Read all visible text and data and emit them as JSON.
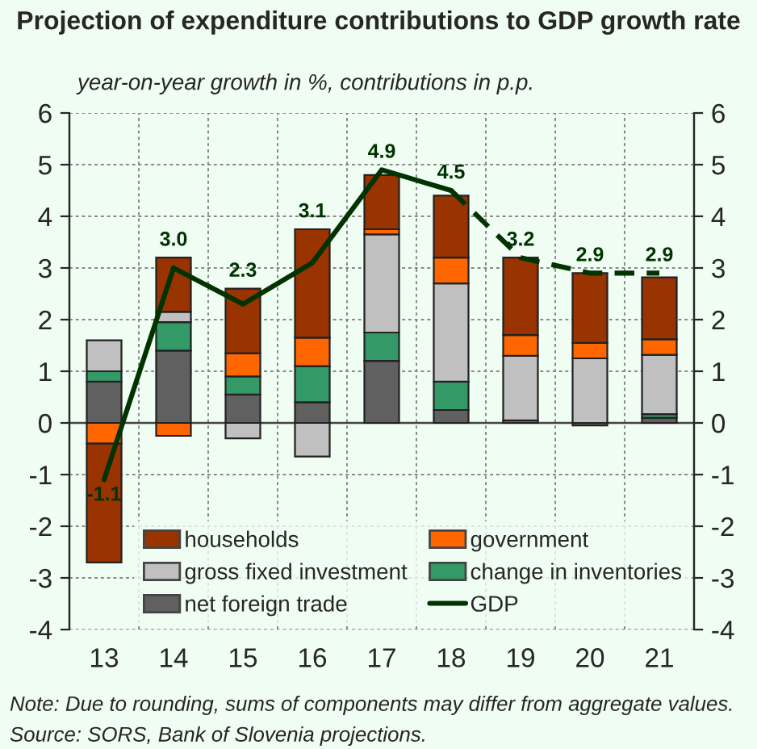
{
  "chart_data": {
    "type": "bar",
    "stacked": true,
    "title": "Projection of expenditure contributions to GDP growth rate",
    "subtitle": "year-on-year growth in %, contributions in p.p.",
    "categories": [
      "13",
      "14",
      "15",
      "16",
      "17",
      "18",
      "19",
      "20",
      "21"
    ],
    "series": [
      {
        "name": "net foreign trade",
        "color": "#606060",
        "values": [
          0.8,
          1.4,
          0.55,
          0.4,
          1.2,
          0.25,
          0.0,
          -0.05,
          0.1
        ]
      },
      {
        "name": "change in inventories",
        "color": "#339966",
        "values": [
          0.2,
          0.55,
          0.35,
          0.7,
          0.55,
          0.55,
          0.05,
          0.0,
          0.07
        ]
      },
      {
        "name": "gross fixed investment",
        "color": "#c0c0c0",
        "values": [
          0.6,
          0.2,
          -0.3,
          -0.65,
          1.9,
          1.9,
          1.25,
          1.25,
          1.15
        ]
      },
      {
        "name": "government",
        "color": "#ff6600",
        "values": [
          -0.4,
          -0.25,
          0.45,
          0.55,
          0.1,
          0.5,
          0.4,
          0.3,
          0.3
        ]
      },
      {
        "name": "households",
        "color": "#993300",
        "values": [
          -2.3,
          1.05,
          1.25,
          2.1,
          1.05,
          1.2,
          1.5,
          1.35,
          1.2
        ]
      },
      {
        "name": "GDP",
        "type": "line",
        "color": "#003300",
        "line_style": "solid",
        "values": [
          -1.1,
          3.0,
          2.3,
          3.1,
          4.9,
          4.5,
          null,
          null,
          null
        ],
        "value_labels": [
          "-1.1",
          "3.0",
          "2.3",
          "3.1",
          "4.9",
          "4.5",
          null,
          null,
          null
        ]
      },
      {
        "type": "line",
        "color": "#003300",
        "line_style": "dashed",
        "values": [
          null,
          null,
          null,
          null,
          null,
          4.5,
          3.2,
          2.9,
          2.9
        ],
        "value_labels": [
          null,
          null,
          null,
          null,
          null,
          null,
          "3.2",
          "2.9",
          "2.9"
        ]
      }
    ],
    "ylim": [
      -4,
      6
    ],
    "yticks": [
      -4,
      -3,
      -2,
      -1,
      0,
      1,
      2,
      3,
      4,
      5,
      6
    ],
    "y2lim": [
      -4,
      6
    ],
    "y2ticks": [
      -4,
      -3,
      -2,
      -1,
      0,
      1,
      2,
      3,
      4,
      5,
      6
    ],
    "grid": true,
    "legend": "bottom",
    "annotations": [
      "Note: Due to rounding, sums of components may differ from aggregate values.",
      "Source: SORS, Bank of Slovenia projections."
    ]
  }
}
